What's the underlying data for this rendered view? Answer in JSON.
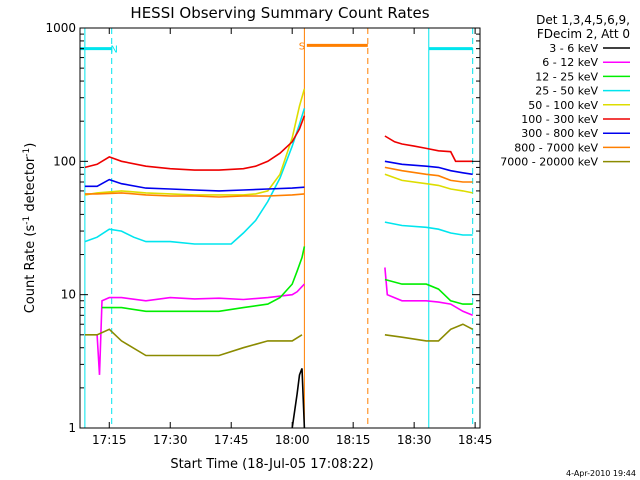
{
  "chart_data": {
    "type": "line",
    "title": "HESSI Observing Summary Count Rates",
    "xlabel": "Start Time (18-Jul-05 17:08:22)",
    "ylabel": "Count Rate (s",
    "ylabel_sup1": "-1",
    "ylabel_mid": " detector",
    "ylabel_sup2": "-1",
    "ylabel_end": ")",
    "yscale": "log",
    "ylim": [
      1,
      1000
    ],
    "xlim": [
      17.13,
      18.77
    ],
    "x_ticks": [
      {
        "x": 17.25,
        "label": "17:15"
      },
      {
        "x": 17.5,
        "label": "17:30"
      },
      {
        "x": 17.75,
        "label": "17:45"
      },
      {
        "x": 18.0,
        "label": "18:00"
      },
      {
        "x": 18.25,
        "label": "18:15"
      },
      {
        "x": 18.5,
        "label": "18:30"
      },
      {
        "x": 18.75,
        "label": "18:45"
      }
    ],
    "y_ticks": [
      {
        "y": 1,
        "label": "1"
      },
      {
        "y": 10,
        "label": "10"
      },
      {
        "y": 100,
        "label": "100"
      },
      {
        "y": 1000,
        "label": "1000"
      }
    ],
    "legend_header": [
      "Det 1,3,4,5,6,9,",
      "FDecim 2, Att 0"
    ],
    "footer_date": "4-Apr-2010 19:44",
    "markers": [
      {
        "label": "N",
        "color": "#00e5ee",
        "bar_start": 17.13,
        "bar_end": 17.26,
        "y": 700,
        "bar_style": "solid",
        "label_x": 17.27
      },
      {
        "label": "S",
        "color": "#ff7f00",
        "bar_start": 18.06,
        "bar_end": 18.31,
        "y": 740,
        "bar_style": "solid",
        "label_x": 18.04
      },
      {
        "label": "",
        "color": "#00e5ee",
        "bar_start": 18.56,
        "bar_end": 18.74,
        "y": 700,
        "bar_style": "solid",
        "label_x": 18.56
      }
    ],
    "vlines": [
      {
        "x": 17.15,
        "color": "#00e5ee",
        "dash": false
      },
      {
        "x": 17.26,
        "color": "#00e5ee",
        "dash": true
      },
      {
        "x": 18.05,
        "color": "#ff7f00",
        "dash": false
      },
      {
        "x": 18.31,
        "color": "#ff7f00",
        "dash": true
      },
      {
        "x": 18.56,
        "color": "#00e5ee",
        "dash": false
      },
      {
        "x": 18.74,
        "color": "#00e5ee",
        "dash": true
      }
    ],
    "series": [
      {
        "name": "3 - 6 keV",
        "color": "#000000",
        "segments": [
          {
            "x": [
              18.0,
              18.02,
              18.03,
              18.04,
              18.05
            ],
            "y": [
              1,
              1.8,
              2.5,
              2.8,
              1
            ]
          }
        ]
      },
      {
        "name": "6 - 12 keV",
        "color": "#ff00ff",
        "segments": [
          {
            "x": [
              17.2,
              17.21,
              17.22,
              17.25,
              17.3,
              17.4,
              17.5,
              17.6,
              17.7,
              17.8,
              17.9,
              18.0,
              18.02,
              18.04,
              18.05
            ],
            "y": [
              5,
              2.5,
              9,
              9.5,
              9.5,
              9,
              9.5,
              9.3,
              9.4,
              9.2,
              9.5,
              10,
              10.5,
              11.5,
              12
            ]
          },
          {
            "x": [
              18.38,
              18.39,
              18.45,
              18.55,
              18.6,
              18.65,
              18.7,
              18.74
            ],
            "y": [
              16,
              10,
              9,
              9,
              8.8,
              8.5,
              7.5,
              7
            ]
          }
        ]
      },
      {
        "name": "12 - 25 keV",
        "color": "#00ee00",
        "segments": [
          {
            "x": [
              17.22,
              17.3,
              17.4,
              17.5,
              17.6,
              17.7,
              17.8,
              17.9,
              17.95,
              18.0,
              18.02,
              18.04,
              18.05
            ],
            "y": [
              8,
              8,
              7.5,
              7.5,
              7.5,
              7.5,
              8,
              8.5,
              9.5,
              12,
              15,
              19,
              23
            ]
          },
          {
            "x": [
              18.38,
              18.45,
              18.55,
              18.6,
              18.65,
              18.7,
              18.74
            ],
            "y": [
              13,
              12,
              12,
              11,
              9,
              8.5,
              8.5
            ]
          }
        ]
      },
      {
        "name": "25 - 50 keV",
        "color": "#00e5ee",
        "segments": [
          {
            "x": [
              17.15,
              17.2,
              17.25,
              17.3,
              17.35,
              17.4,
              17.5,
              17.6,
              17.7,
              17.75,
              17.8,
              17.85,
              17.9,
              17.95,
              18.0,
              18.03,
              18.05
            ],
            "y": [
              25,
              27,
              31,
              30,
              27,
              25,
              25,
              24,
              24,
              24,
              29,
              36,
              50,
              75,
              130,
              190,
              250
            ]
          },
          {
            "x": [
              18.38,
              18.45,
              18.55,
              18.6,
              18.65,
              18.7,
              18.74
            ],
            "y": [
              35,
              33,
              32,
              31,
              29,
              28,
              28
            ]
          }
        ]
      },
      {
        "name": "50 - 100 keV",
        "color": "#dddd00",
        "segments": [
          {
            "x": [
              17.15,
              17.2,
              17.3,
              17.4,
              17.5,
              17.6,
              17.7,
              17.8,
              17.85,
              17.9,
              17.95,
              18.0,
              18.03,
              18.05
            ],
            "y": [
              56,
              58,
              60,
              58,
              57,
              56,
              56,
              56,
              57,
              60,
              80,
              150,
              260,
              350
            ]
          },
          {
            "x": [
              18.38,
              18.45,
              18.55,
              18.6,
              18.65,
              18.7,
              18.74
            ],
            "y": [
              80,
              72,
              68,
              66,
              62,
              60,
              58
            ]
          }
        ]
      },
      {
        "name": "100 - 300 keV",
        "color": "#ee0000",
        "segments": [
          {
            "x": [
              17.15,
              17.2,
              17.25,
              17.3,
              17.4,
              17.5,
              17.6,
              17.7,
              17.8,
              17.85,
              17.9,
              17.95,
              18.0,
              18.03,
              18.05
            ],
            "y": [
              90,
              95,
              108,
              100,
              92,
              88,
              86,
              86,
              88,
              92,
              100,
              115,
              140,
              175,
              220
            ]
          },
          {
            "x": [
              18.38,
              18.42,
              18.45,
              18.5,
              18.55,
              18.6,
              18.65,
              18.67,
              18.7,
              18.74
            ],
            "y": [
              155,
              140,
              135,
              130,
              125,
              120,
              118,
              100,
              100,
              100
            ]
          }
        ]
      },
      {
        "name": "300 - 800 keV",
        "color": "#0000ee",
        "segments": [
          {
            "x": [
              17.15,
              17.2,
              17.25,
              17.3,
              17.4,
              17.5,
              17.6,
              17.7,
              17.8,
              17.9,
              18.0,
              18.05
            ],
            "y": [
              65,
              65,
              73,
              68,
              63,
              62,
              61,
              60,
              61,
              62,
              63,
              64
            ]
          },
          {
            "x": [
              18.38,
              18.45,
              18.55,
              18.6,
              18.65,
              18.7,
              18.74
            ],
            "y": [
              100,
              95,
              92,
              90,
              85,
              82,
              80
            ]
          }
        ]
      },
      {
        "name": "800 - 7000 keV",
        "color": "#ff7f00",
        "segments": [
          {
            "x": [
              17.15,
              17.2,
              17.3,
              17.4,
              17.5,
              17.6,
              17.7,
              17.8,
              17.9,
              18.0,
              18.05
            ],
            "y": [
              57,
              57,
              58,
              56,
              55,
              55,
              54,
              55,
              55,
              56,
              57
            ]
          },
          {
            "x": [
              18.38,
              18.45,
              18.55,
              18.6,
              18.65,
              18.7,
              18.74
            ],
            "y": [
              90,
              85,
              80,
              78,
              72,
              70,
              70
            ]
          }
        ]
      },
      {
        "name": "7000 - 20000 keV",
        "color": "#8b8b00",
        "segments": [
          {
            "x": [
              17.15,
              17.2,
              17.25,
              17.3,
              17.4,
              17.5,
              17.6,
              17.7,
              17.8,
              17.9,
              18.0,
              18.04
            ],
            "y": [
              5,
              5,
              5.5,
              4.5,
              3.5,
              3.5,
              3.5,
              3.5,
              4,
              4.5,
              4.5,
              5
            ]
          },
          {
            "x": [
              18.38,
              18.45,
              18.55,
              18.6,
              18.65,
              18.7,
              18.74
            ],
            "y": [
              5,
              4.8,
              4.5,
              4.5,
              5.5,
              6,
              5.5
            ]
          }
        ]
      }
    ]
  }
}
